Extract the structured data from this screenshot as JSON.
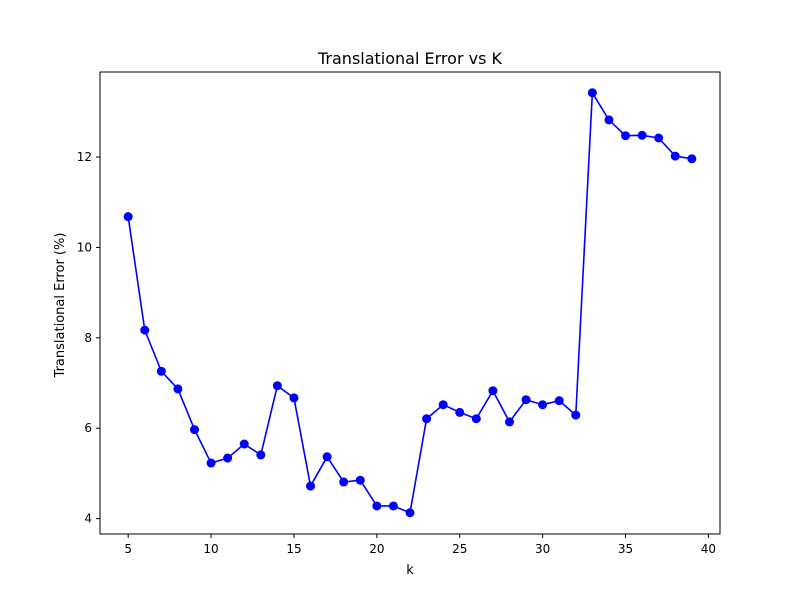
{
  "chart_data": {
    "type": "line",
    "title": "Translational Error vs K",
    "xlabel": "k",
    "ylabel": "Translational Error (%)",
    "xlim": [
      3.3,
      40.7
    ],
    "ylim": [
      3.66,
      13.88
    ],
    "x_ticks": [
      5,
      10,
      15,
      20,
      25,
      30,
      35,
      40
    ],
    "y_ticks": [
      4,
      6,
      8,
      10,
      12
    ],
    "grid": false,
    "legend": "none",
    "series": [
      {
        "color": "#0000ff",
        "marker": "circle",
        "x": [
          5,
          6,
          7,
          8,
          9,
          10,
          11,
          12,
          13,
          14,
          15,
          16,
          17,
          18,
          19,
          20,
          21,
          22,
          23,
          24,
          25,
          26,
          27,
          28,
          29,
          30,
          31,
          32,
          33,
          34,
          35,
          36,
          37,
          38,
          39
        ],
        "y": [
          10.68,
          8.17,
          7.26,
          6.87,
          5.97,
          5.23,
          5.34,
          5.65,
          5.41,
          6.94,
          6.67,
          4.72,
          5.37,
          4.81,
          4.85,
          4.28,
          4.28,
          4.13,
          6.21,
          6.52,
          6.35,
          6.21,
          6.83,
          6.14,
          6.63,
          6.52,
          6.61,
          6.29,
          13.42,
          12.82,
          12.47,
          12.48,
          12.42,
          12.02,
          11.96
        ]
      }
    ]
  }
}
